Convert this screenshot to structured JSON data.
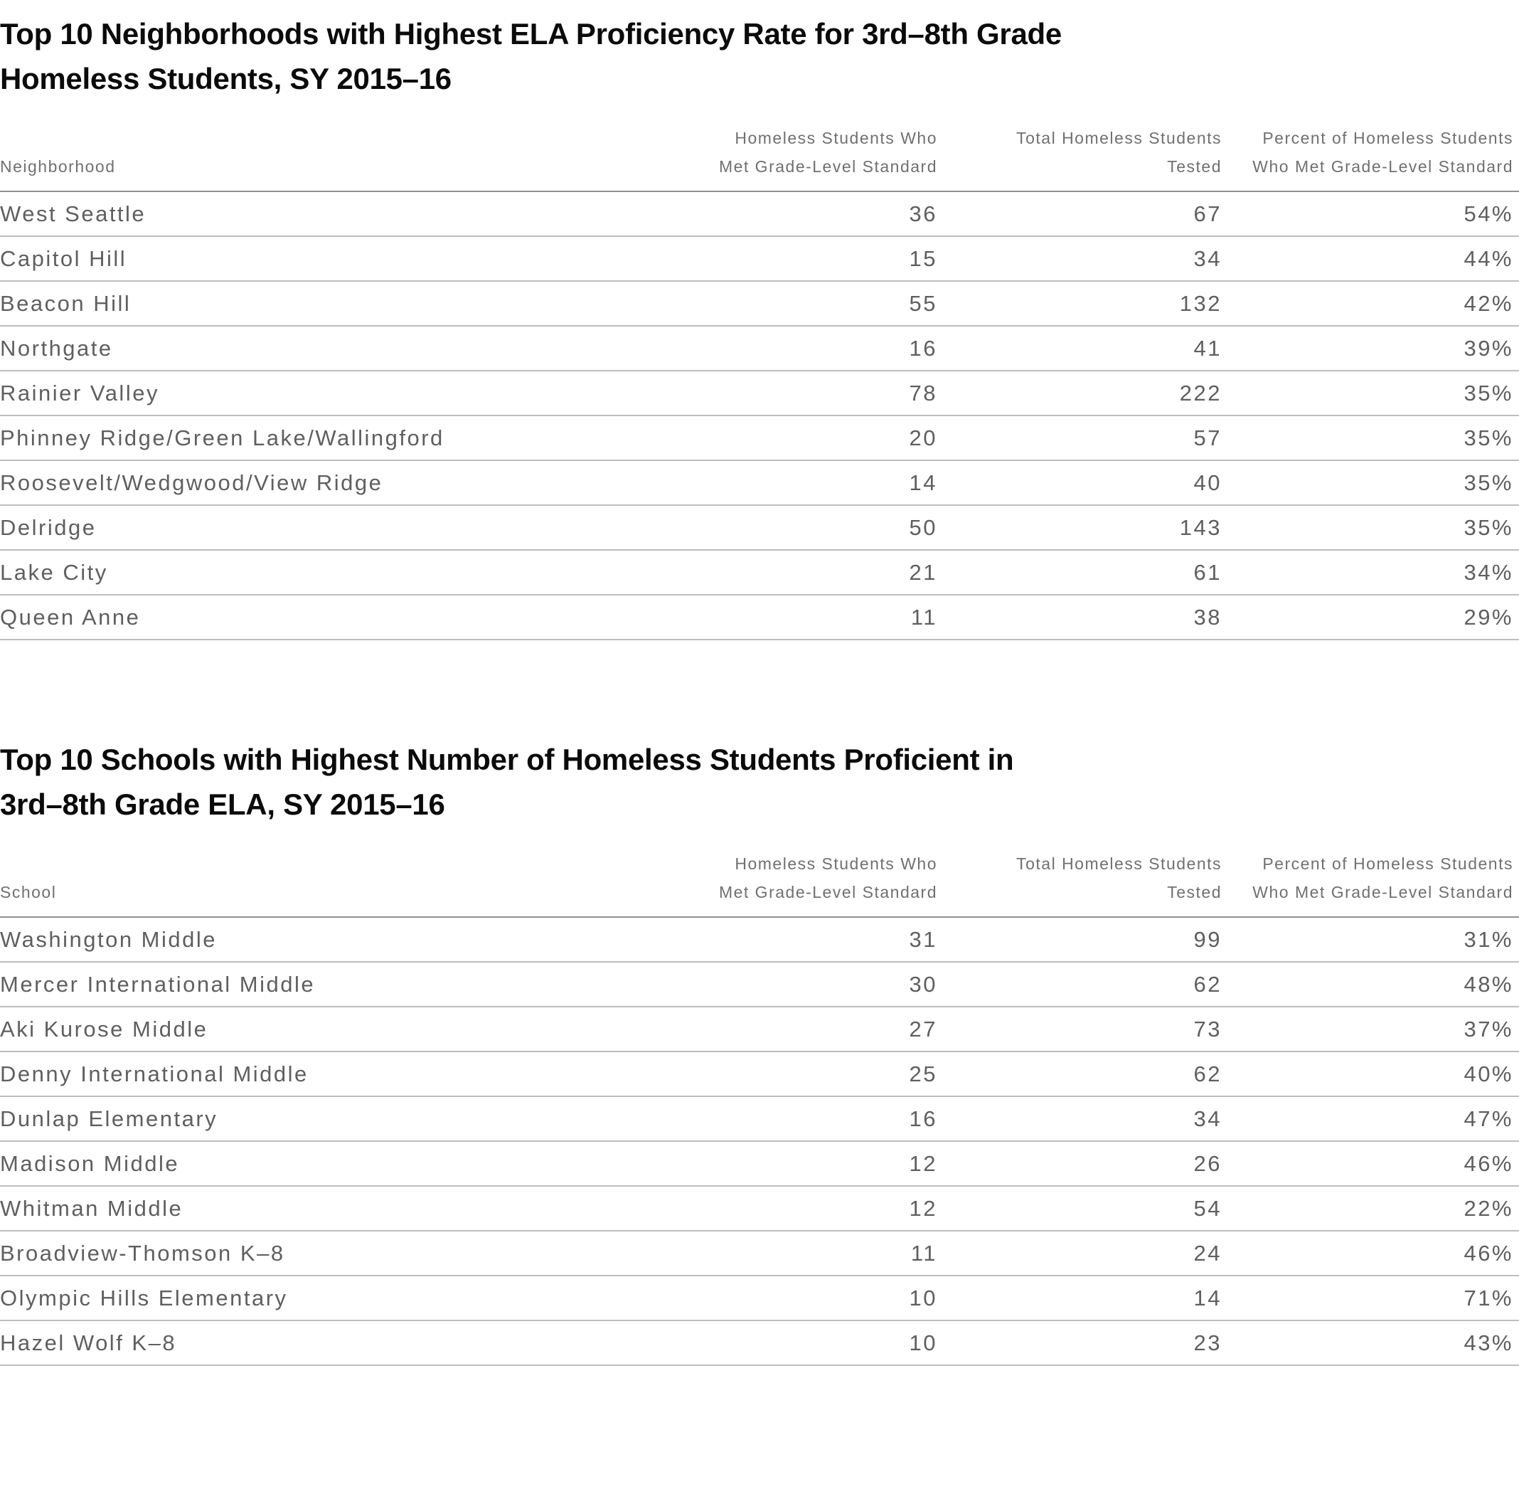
{
  "colors": {
    "background": "#ffffff",
    "title_text": "#0b0b0b",
    "header_text": "#707070",
    "row_text": "#5f5f5f",
    "header_rule": "#8f8f8f",
    "row_rule": "#bdbdbd"
  },
  "chart_data": [
    {
      "type": "table",
      "title": "Top 10 Neighborhoods with Highest ELA Proficiency Rate for 3rd–8th Grade\nHomeless Students, SY 2015–16",
      "columns": [
        "Neighborhood",
        "Homeless Students Who\nMet Grade-Level Standard",
        "Total Homeless Students\nTested",
        "Percent of Homeless Students\nWho Met Grade-Level Standard"
      ],
      "rows": [
        [
          "West Seattle",
          "36",
          "67",
          "54%"
        ],
        [
          "Capitol Hill",
          "15",
          "34",
          "44%"
        ],
        [
          "Beacon Hill",
          "55",
          "132",
          "42%"
        ],
        [
          "Northgate",
          "16",
          "41",
          "39%"
        ],
        [
          "Rainier Valley",
          "78",
          "222",
          "35%"
        ],
        [
          "Phinney Ridge/Green Lake/Wallingford",
          "20",
          "57",
          "35%"
        ],
        [
          "Roosevelt/Wedgwood/View Ridge",
          "14",
          "40",
          "35%"
        ],
        [
          "Delridge",
          "50",
          "143",
          "35%"
        ],
        [
          "Lake City",
          "21",
          "61",
          "34%"
        ],
        [
          "Queen Anne",
          "11",
          "38",
          "29%"
        ]
      ]
    },
    {
      "type": "table",
      "title": "Top 10 Schools with Highest Number of Homeless Students Proficient in\n3rd–8th Grade ELA, SY 2015–16",
      "columns": [
        "School",
        "Homeless Students Who\nMet Grade-Level Standard",
        "Total Homeless Students\nTested",
        "Percent of Homeless Students\nWho Met Grade-Level Standard"
      ],
      "rows": [
        [
          "Washington Middle",
          "31",
          "99",
          "31%"
        ],
        [
          "Mercer International Middle",
          "30",
          "62",
          "48%"
        ],
        [
          "Aki Kurose Middle",
          "27",
          "73",
          "37%"
        ],
        [
          "Denny International Middle",
          "25",
          "62",
          "40%"
        ],
        [
          "Dunlap Elementary",
          "16",
          "34",
          "47%"
        ],
        [
          "Madison Middle",
          "12",
          "26",
          "46%"
        ],
        [
          "Whitman Middle",
          "12",
          "54",
          "22%"
        ],
        [
          "Broadview-Thomson K–8",
          "11",
          "24",
          "46%"
        ],
        [
          "Olympic Hills Elementary",
          "10",
          "14",
          "71%"
        ],
        [
          "Hazel Wolf K–8",
          "10",
          "23",
          "43%"
        ]
      ]
    }
  ]
}
